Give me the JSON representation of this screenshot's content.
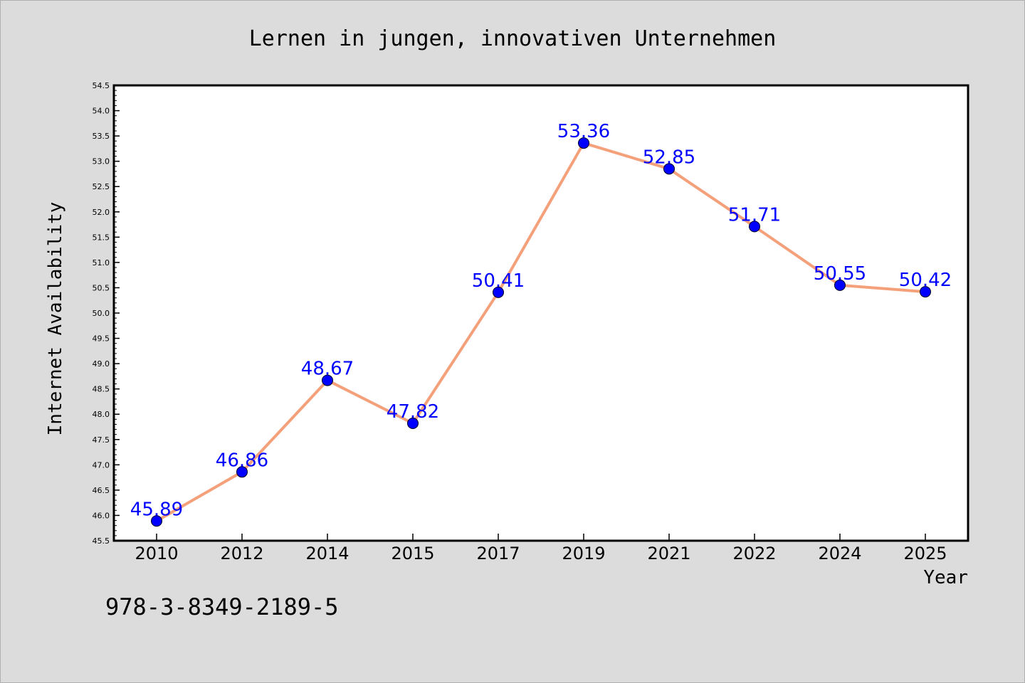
{
  "chart_data": {
    "type": "line",
    "title": "Lernen in jungen, innovativen Unternehmen",
    "xlabel": "Year",
    "ylabel": "Internet Availability",
    "categories": [
      "2010",
      "2012",
      "2014",
      "2015",
      "2017",
      "2019",
      "2021",
      "2022",
      "2024",
      "2025"
    ],
    "series": [
      {
        "values": [
          45.89,
          46.86,
          48.67,
          47.82,
          50.41,
          53.36,
          52.85,
          51.71,
          50.55,
          50.42
        ],
        "labels": [
          "45.89",
          "46.86",
          "48.67",
          "47.82",
          "50.41",
          "53.36",
          "52.85",
          "51.71",
          "50.55",
          "50.42"
        ],
        "line_color": "#f4a07a",
        "marker_color": "#0000ff"
      }
    ],
    "ylim": [
      45.5,
      54.5
    ],
    "yticks": [
      "45.5",
      "46.0",
      "46.5",
      "47.0",
      "47.5",
      "48.0",
      "48.5",
      "49.0",
      "49.5",
      "50.0",
      "50.5",
      "51.0",
      "51.5",
      "52.0",
      "52.5",
      "53.0",
      "53.5",
      "54.0",
      "54.5"
    ],
    "grid": false,
    "legend": "none"
  },
  "footer": {
    "isbn": "978-3-8349-2189-5"
  },
  "colors": {
    "background": "#dcdcdc",
    "plot_background": "#ffffff",
    "line": "#f4a07a",
    "marker": "#0000ff",
    "label": "#0000ff"
  }
}
